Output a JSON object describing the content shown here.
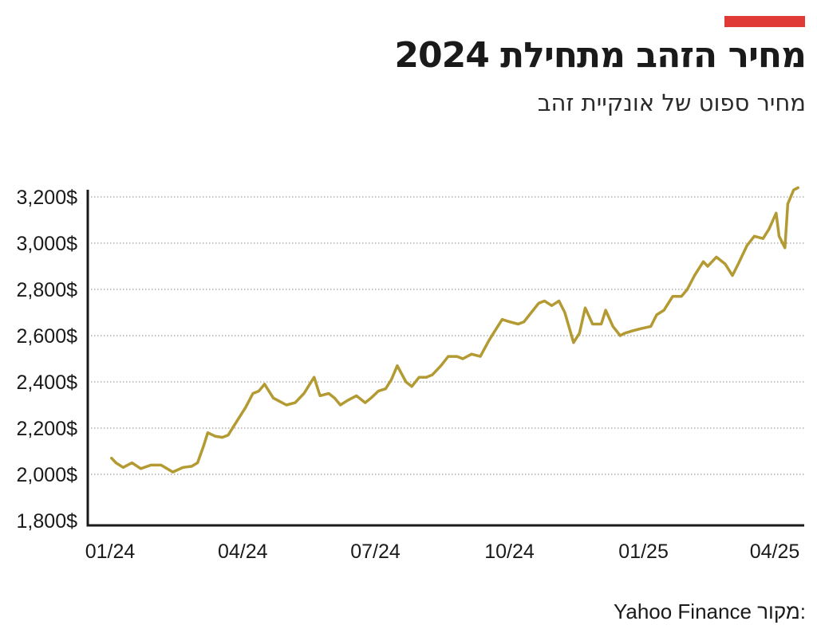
{
  "header": {
    "title": "מחיר הזהב מתחילת 2024",
    "subtitle": "מחיר ספוט של אונקיית זהב",
    "accent_color": "#e03a36"
  },
  "source": {
    "label": "מקור:",
    "name": "Yahoo Finance"
  },
  "chart_data": {
    "type": "line",
    "title": "מחיר הזהב מתחילת 2024",
    "subtitle": "מחיר ספוט של אונקיית זהב",
    "xlabel": "",
    "ylabel": "",
    "ylim": [
      1800,
      3200
    ],
    "yticks": [
      1800,
      2000,
      2200,
      2400,
      2600,
      2800,
      3000,
      3200
    ],
    "ytick_labels": [
      "1,800$",
      "2,000$",
      "2,200$",
      "2,400$",
      "2,600$",
      "2,800$",
      "3,000$",
      "3,200$"
    ],
    "xticks": [
      "2024-01-01",
      "2024-04-01",
      "2024-07-01",
      "2024-10-01",
      "2025-01-01",
      "2025-04-01"
    ],
    "xtick_labels": [
      "01/24",
      "04/24",
      "07/24",
      "10/24",
      "01/25",
      "04/25"
    ],
    "grid": "horizontal dotted",
    "line_color": "#b39a32",
    "series": [
      {
        "x": [
          "2024-01-02",
          "2024-01-05",
          "2024-01-10",
          "2024-01-16",
          "2024-01-22",
          "2024-01-29",
          "2024-02-05",
          "2024-02-13",
          "2024-02-20",
          "2024-02-26",
          "2024-03-01",
          "2024-03-05",
          "2024-03-08",
          "2024-03-13",
          "2024-03-18",
          "2024-03-22",
          "2024-03-28",
          "2024-04-03",
          "2024-04-08",
          "2024-04-12",
          "2024-04-16",
          "2024-04-22",
          "2024-04-25",
          "2024-05-01",
          "2024-05-07",
          "2024-05-13",
          "2024-05-20",
          "2024-05-24",
          "2024-05-30",
          "2024-06-03",
          "2024-06-07",
          "2024-06-12",
          "2024-06-18",
          "2024-06-24",
          "2024-06-28",
          "2024-07-03",
          "2024-07-08",
          "2024-07-12",
          "2024-07-16",
          "2024-07-22",
          "2024-07-26",
          "2024-07-31",
          "2024-08-05",
          "2024-08-09",
          "2024-08-15",
          "2024-08-20",
          "2024-08-26",
          "2024-08-30",
          "2024-09-05",
          "2024-09-11",
          "2024-09-17",
          "2024-09-20",
          "2024-09-26",
          "2024-10-01",
          "2024-10-07",
          "2024-10-11",
          "2024-10-16",
          "2024-10-21",
          "2024-10-25",
          "2024-10-30",
          "2024-11-04",
          "2024-11-08",
          "2024-11-14",
          "2024-11-18",
          "2024-11-22",
          "2024-11-27",
          "2024-12-03",
          "2024-12-06",
          "2024-12-11",
          "2024-12-16",
          "2024-12-19",
          "2024-12-24",
          "2024-12-30",
          "2025-01-06",
          "2025-01-10",
          "2025-01-15",
          "2025-01-21",
          "2025-01-27",
          "2025-01-31",
          "2025-02-05",
          "2025-02-11",
          "2025-02-14",
          "2025-02-20",
          "2025-02-26",
          "2025-03-03",
          "2025-03-07",
          "2025-03-13",
          "2025-03-18",
          "2025-03-24",
          "2025-03-28",
          "2025-04-02",
          "2025-04-04",
          "2025-04-08",
          "2025-04-10",
          "2025-04-14",
          "2025-04-17"
        ],
        "values": [
          2070,
          2050,
          2030,
          2050,
          2025,
          2040,
          2040,
          2010,
          2030,
          2035,
          2050,
          2120,
          2180,
          2165,
          2160,
          2170,
          2230,
          2290,
          2350,
          2360,
          2390,
          2330,
          2320,
          2300,
          2310,
          2350,
          2420,
          2340,
          2350,
          2330,
          2300,
          2320,
          2340,
          2310,
          2330,
          2360,
          2370,
          2410,
          2470,
          2400,
          2380,
          2420,
          2420,
          2430,
          2470,
          2510,
          2510,
          2500,
          2520,
          2510,
          2580,
          2610,
          2670,
          2660,
          2650,
          2660,
          2700,
          2740,
          2750,
          2730,
          2750,
          2700,
          2570,
          2610,
          2720,
          2650,
          2650,
          2710,
          2640,
          2600,
          2610,
          2620,
          2630,
          2640,
          2690,
          2710,
          2770,
          2770,
          2800,
          2860,
          2920,
          2900,
          2940,
          2910,
          2860,
          2910,
          2990,
          3030,
          3020,
          3060,
          3130,
          3030,
          2980,
          3170,
          3230,
          3240
        ]
      }
    ]
  }
}
